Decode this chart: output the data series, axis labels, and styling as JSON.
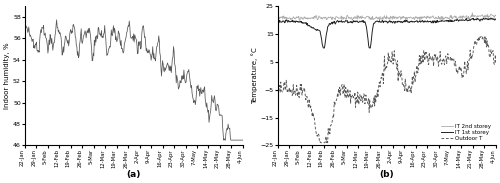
{
  "fig_width": 5.0,
  "fig_height": 1.83,
  "dpi": 100,
  "xtick_labels": [
    "22-Jan",
    "29-Jan",
    "5-Feb",
    "12-Feb",
    "19-Feb",
    "26-Feb",
    "5-Mar",
    "12-Mar",
    "19-Mar",
    "26-Mar",
    "2-Apr",
    "9-Apr",
    "16-Apr",
    "23-Apr",
    "30-Apr",
    "7-May",
    "14-May",
    "21-May",
    "28-May",
    "4-Jun"
  ],
  "panel_a": {
    "ylabel": "Indoor humidity, %",
    "ylim": [
      46,
      59
    ],
    "yticks": [
      46,
      48,
      50,
      52,
      54,
      56,
      58
    ],
    "label": "(a)",
    "line_color": "#555555"
  },
  "panel_b": {
    "ylabel": "Temperature, °C",
    "ylim": [
      -25,
      25
    ],
    "yticks": [
      -25,
      -15,
      -5,
      5,
      15,
      25
    ],
    "label": "(b)",
    "line1_color": "#222222",
    "line2_color": "#aaaaaa",
    "line3_color": "#555555",
    "legend_labels": [
      "IT 1st storey",
      "IT 2nd storey",
      "Outdoor T"
    ]
  }
}
